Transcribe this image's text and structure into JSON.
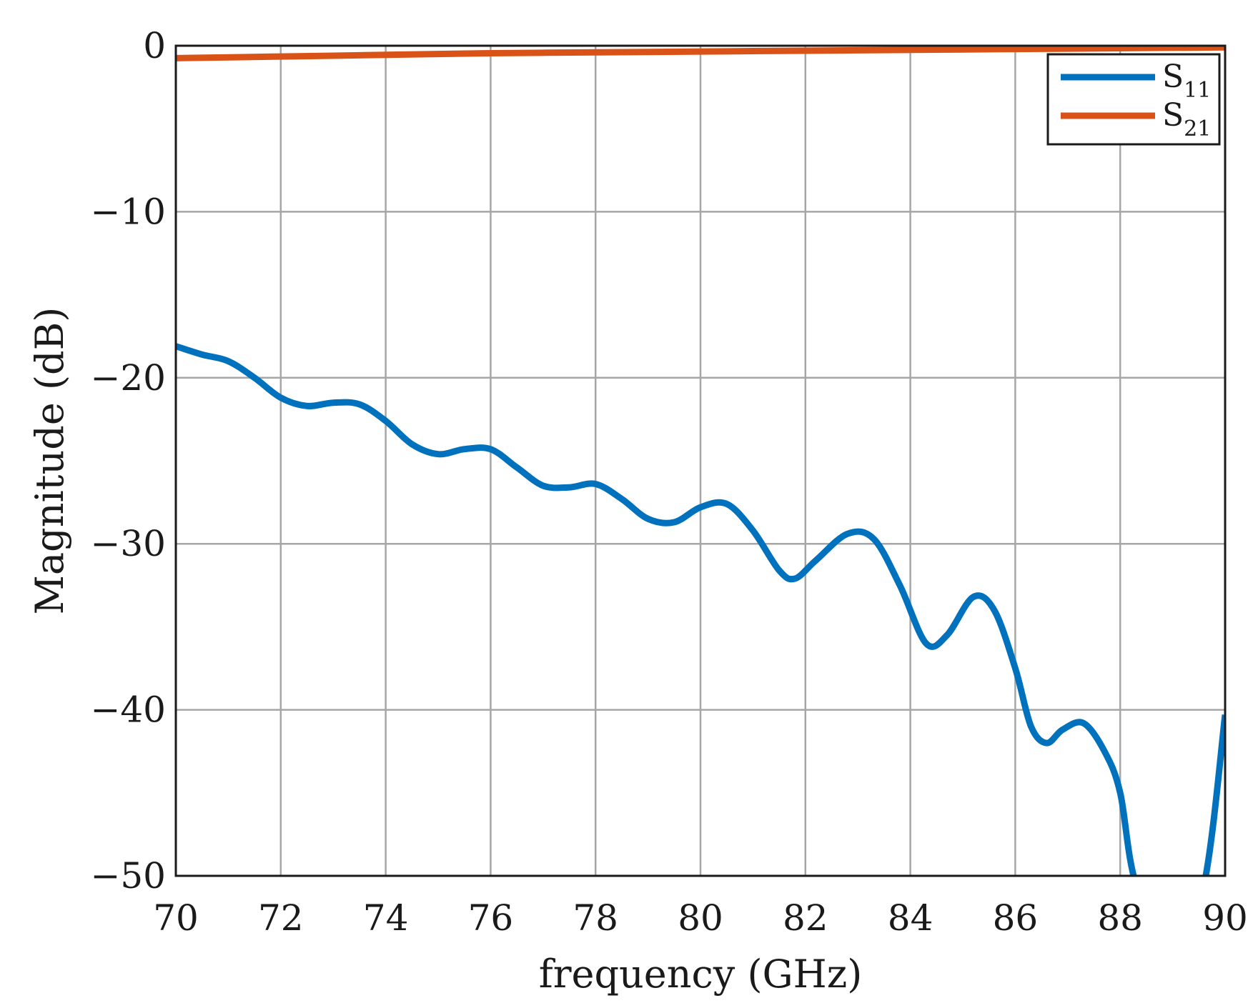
{
  "chart_data": {
    "type": "line",
    "xlabel": "frequency (GHz)",
    "ylabel": "Magnitude (dB)",
    "xlim": [
      70,
      90
    ],
    "ylim": [
      -50,
      0
    ],
    "xticks": [
      70,
      72,
      74,
      76,
      78,
      80,
      82,
      84,
      86,
      88,
      90
    ],
    "yticks": [
      0,
      -10,
      -20,
      -30,
      -40,
      -50
    ],
    "ytick_labels": [
      "0",
      "−10",
      "−20",
      "−30",
      "−40",
      "−50"
    ],
    "grid": true,
    "legend_position": "top-right",
    "series": [
      {
        "name": "S11",
        "name_main": "S",
        "name_sub": "11",
        "color": "#0072BD",
        "x": [
          70,
          70.5,
          71,
          71.5,
          72,
          72.5,
          73,
          73.5,
          74,
          74.5,
          75,
          75.5,
          76,
          76.5,
          77,
          77.5,
          78,
          78.5,
          79,
          79.5,
          80,
          80.5,
          81,
          81.5,
          81.8,
          82.2,
          82.8,
          83.3,
          83.8,
          84.3,
          84.7,
          85.2,
          85.6,
          86.0,
          86.3,
          86.6,
          86.9,
          87.3,
          87.7,
          88.0,
          88.3,
          89.0,
          89.6,
          90
        ],
        "y": [
          -18.1,
          -18.6,
          -19.0,
          -20.0,
          -21.2,
          -21.7,
          -21.5,
          -21.6,
          -22.6,
          -24.0,
          -24.6,
          -24.3,
          -24.3,
          -25.4,
          -26.5,
          -26.6,
          -26.4,
          -27.3,
          -28.5,
          -28.7,
          -27.8,
          -27.6,
          -29.2,
          -31.6,
          -32.1,
          -31.0,
          -29.4,
          -29.7,
          -32.5,
          -36.0,
          -35.5,
          -33.2,
          -34.0,
          -37.5,
          -41.0,
          -42.0,
          -41.2,
          -40.8,
          -42.5,
          -45.0,
          -50.5,
          -55.0,
          -50.5,
          -40.3
        ]
      },
      {
        "name": "S21",
        "name_main": "S",
        "name_sub": "21",
        "color": "#D95319",
        "x": [
          70,
          72,
          74,
          76,
          78,
          80,
          82,
          84,
          86,
          88,
          90
        ],
        "y": [
          -0.75,
          -0.65,
          -0.55,
          -0.45,
          -0.4,
          -0.35,
          -0.3,
          -0.25,
          -0.2,
          -0.15,
          -0.1
        ]
      }
    ]
  }
}
